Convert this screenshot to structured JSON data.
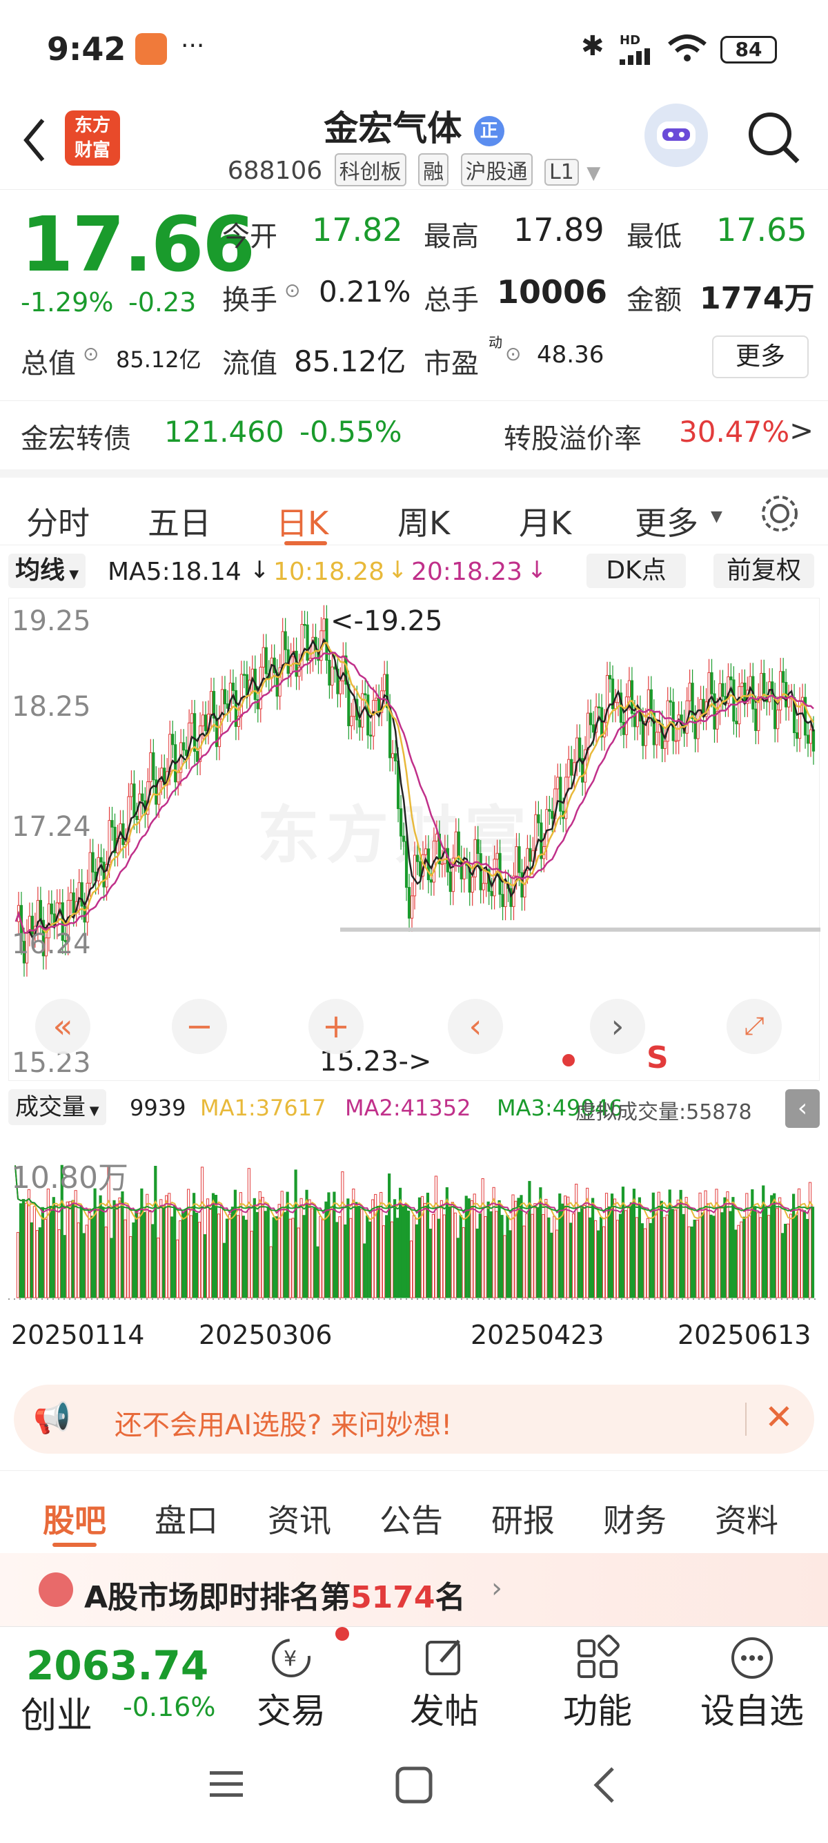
{
  "status_bar": {
    "time": "9:42",
    "battery": "84",
    "dots": "···",
    "net": "HD"
  },
  "header": {
    "brand_line1": "东方",
    "brand_line2": "财富",
    "name": "金宏气体",
    "badge": "正",
    "code": "688106",
    "tags": [
      "科创板",
      "融",
      "沪股通",
      "L1"
    ]
  },
  "quote": {
    "price": "17.66",
    "change_pct": "-1.29%",
    "change": "-0.23",
    "open_label": "今开",
    "open": "17.82",
    "high_label": "最高",
    "high": "17.89",
    "low_label": "最低",
    "low": "17.65",
    "turnover_label": "换手",
    "turnover": "0.21%",
    "volume_label": "总手",
    "volume": "10006",
    "amount_label": "金额",
    "amount": "1774万",
    "mcap_label": "总值",
    "mcap": "85.12亿",
    "float_label": "流值",
    "float": "85.12亿",
    "pe_label": "市盈",
    "pe_sup": "动",
    "pe": "48.36",
    "more": "更多"
  },
  "bond": {
    "name": "金宏转债",
    "price": "121.460",
    "change": "-0.55%",
    "premium_label": "转股溢价率",
    "premium": "30.47%"
  },
  "tabs": {
    "items": [
      "分时",
      "五日",
      "日K",
      "周K",
      "月K",
      "更多"
    ],
    "active": "日K"
  },
  "ma_bar": {
    "selector": "均线",
    "ma5": "MA5:18.14",
    "ma10": "10:18.28",
    "ma20": "20:18.23",
    "dk": "DK点",
    "adj": "前复权"
  },
  "price_chart": {
    "axis_labels": [
      "19.25",
      "18.25",
      "17.24",
      "16.24",
      "15.23"
    ],
    "high_marker": "<-19.25",
    "low_marker": "15.23->",
    "s_marker": "S",
    "watermark": "东方财富"
  },
  "vol_bar": {
    "selector": "成交量",
    "vol": "9939",
    "ma1": "MA1:37617",
    "ma2": "MA2:41352",
    "ma3": "MA3:49046",
    "virtual": "虚拟成交量:55878"
  },
  "vol_chart": {
    "max_label": "10.80万",
    "dates": [
      "20250114",
      "20250306",
      "20250423",
      "20250613"
    ]
  },
  "ai_banner": {
    "text": "还不会用AI选股? 来问妙想!"
  },
  "bottom_tabs": {
    "items": [
      "股吧",
      "盘口",
      "资讯",
      "公告",
      "研报",
      "财务",
      "资料"
    ],
    "active": "股吧"
  },
  "rank": {
    "prefix": "A股市场即时排名第",
    "rank": "5174",
    "suffix": "名"
  },
  "index_ticker": {
    "value": "2063.74",
    "name": "创业",
    "change": "-0.16%"
  },
  "bottom_nav": [
    "交易",
    "发帖",
    "功能",
    "设自选"
  ],
  "colors": {
    "up": "#e23b3b",
    "down": "#1a9b2c",
    "ma5": "#222222",
    "ma10": "#e8b93a",
    "ma20": "#c0308a",
    "accent": "#e86a3a"
  }
}
